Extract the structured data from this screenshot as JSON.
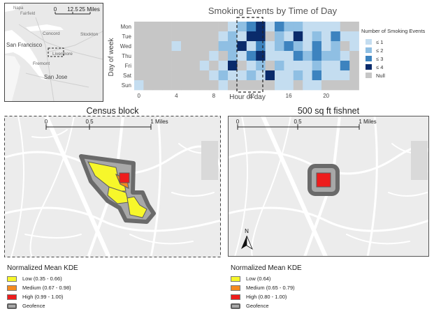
{
  "inset": {
    "places": [
      "Napa",
      "Fairfield",
      "Concord",
      "San Francisco",
      "Stockton",
      "Livermore",
      "Fremont",
      "San Jose"
    ],
    "scale_ticks": [
      "0",
      "12.5",
      "25 Miles"
    ]
  },
  "heatmap": {
    "title": "Smoking Events by Time of Day",
    "xlabel": "Hour of day",
    "ylabel": "Day of week",
    "days": [
      "Mon",
      "Tue",
      "Wed",
      "Thu",
      "Fri",
      "Sat",
      "Sun"
    ],
    "x_ticks": [
      0,
      4,
      8,
      12,
      16,
      20
    ],
    "legend_title": "Number of Smoking Events",
    "legend_items": [
      "≤ 1",
      "≤ 2",
      "≤ 3",
      "≤ 4",
      "Null"
    ],
    "colors": [
      "#c4ddf0",
      "#8fbfe3",
      "#3d83bf",
      "#0a2b6b",
      "#c6c6c6"
    ],
    "cells": [
      [
        0,
        0,
        0,
        0,
        0,
        0,
        0,
        0,
        0,
        0,
        1,
        2,
        3,
        4,
        1,
        3,
        2,
        2,
        1,
        1,
        1,
        1,
        0,
        0
      ],
      [
        0,
        0,
        0,
        0,
        0,
        0,
        0,
        0,
        0,
        1,
        2,
        1,
        4,
        4,
        0,
        2,
        1,
        4,
        1,
        2,
        1,
        3,
        1,
        1
      ],
      [
        0,
        0,
        0,
        0,
        1,
        0,
        0,
        0,
        0,
        2,
        2,
        4,
        1,
        3,
        1,
        2,
        3,
        2,
        1,
        3,
        1,
        2,
        0,
        1
      ],
      [
        0,
        0,
        0,
        0,
        0,
        0,
        0,
        0,
        1,
        0,
        2,
        1,
        3,
        4,
        1,
        1,
        1,
        3,
        2,
        3,
        2,
        2,
        1,
        0
      ],
      [
        0,
        0,
        0,
        0,
        0,
        0,
        0,
        1,
        0,
        1,
        4,
        0,
        1,
        2,
        0,
        2,
        1,
        1,
        1,
        2,
        1,
        1,
        3,
        0
      ],
      [
        0,
        0,
        0,
        0,
        0,
        0,
        0,
        0,
        1,
        2,
        1,
        1,
        2,
        1,
        4,
        1,
        1,
        2,
        1,
        3,
        1,
        1,
        1,
        0
      ],
      [
        1,
        0,
        0,
        0,
        0,
        0,
        0,
        0,
        0,
        1,
        0,
        0,
        0,
        0,
        0,
        1,
        1,
        0,
        1,
        1,
        0,
        0,
        0,
        0
      ]
    ]
  },
  "maps": [
    {
      "title": "Census block",
      "scale": [
        "0",
        "0.5",
        "1 Miles"
      ],
      "legend": {
        "title": "Normalized Mean KDE",
        "items": [
          {
            "label": "Low (0.35 - 0.66)",
            "color": "#f7f72a"
          },
          {
            "label": "Medium (0.67 - 0.98)",
            "color": "#f58a1f"
          },
          {
            "label": "High (0.99 - 1.00)",
            "color": "#ee1c1c"
          },
          {
            "label": "Geofence",
            "color": "#a8a8a8"
          }
        ]
      }
    },
    {
      "title": "500 sq ft fishnet",
      "scale": [
        "0",
        "0.5",
        "1 Miles"
      ],
      "north": "N",
      "legend": {
        "title": "Normalized Mean KDE",
        "items": [
          {
            "label": "Low (0.64)",
            "color": "#f7f72a"
          },
          {
            "label": "Medium (0.65 - 0.79)",
            "color": "#f58a1f"
          },
          {
            "label": "High (0.80 - 1.00)",
            "color": "#ee1c1c"
          },
          {
            "label": "Geofence",
            "color": "#a8a8a8"
          }
        ]
      }
    }
  ]
}
